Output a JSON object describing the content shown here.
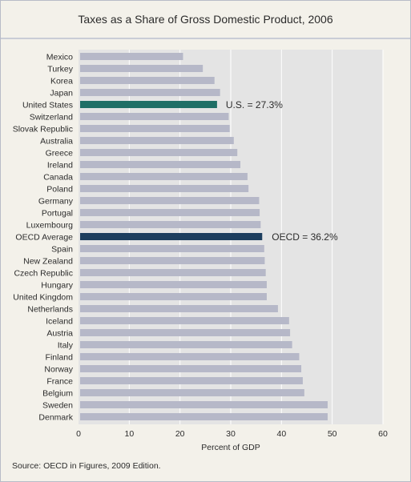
{
  "chart_data": {
    "type": "bar",
    "orientation": "horizontal",
    "title": "Taxes as a Share of Gross Domestic Product, 2006",
    "xlabel": "Percent of GDP",
    "ylabel": "",
    "xlim": [
      0,
      60
    ],
    "xticks": [
      0,
      10,
      20,
      30,
      40,
      50,
      60
    ],
    "grid": true,
    "categories": [
      "Mexico",
      "Turkey",
      "Korea",
      "Japan",
      "United States",
      "Switzerland",
      "Slovak Republic",
      "Australia",
      "Greece",
      "Ireland",
      "Canada",
      "Poland",
      "Germany",
      "Portugal",
      "Luxembourg",
      "OECD Average",
      "Spain",
      "New Zealand",
      "Czech Republic",
      "Hungary",
      "United Kingdom",
      "Netherlands",
      "Iceland",
      "Austria",
      "Italy",
      "Finland",
      "Norway",
      "France",
      "Belgium",
      "Sweden",
      "Denmark"
    ],
    "values": [
      20.6,
      24.5,
      26.8,
      27.9,
      27.3,
      29.6,
      29.8,
      30.6,
      31.3,
      31.9,
      33.3,
      33.5,
      35.6,
      35.7,
      35.9,
      36.2,
      36.6,
      36.7,
      36.9,
      37.1,
      37.1,
      39.3,
      41.5,
      41.7,
      42.1,
      43.5,
      43.9,
      44.2,
      44.5,
      49.1,
      49.1
    ],
    "highlights": {
      "United States": {
        "color": "#1f6f66",
        "annotation": "U.S. = 27.3%"
      },
      "OECD Average": {
        "color": "#1d3e5e",
        "annotation": "OECD = 36.2%"
      }
    },
    "colors": {
      "bar": "#b6b8c8",
      "plot_bg": "#e4e4e4",
      "grid": "#ffffff"
    }
  },
  "source": "Source: OECD in Figures, 2009 Edition."
}
